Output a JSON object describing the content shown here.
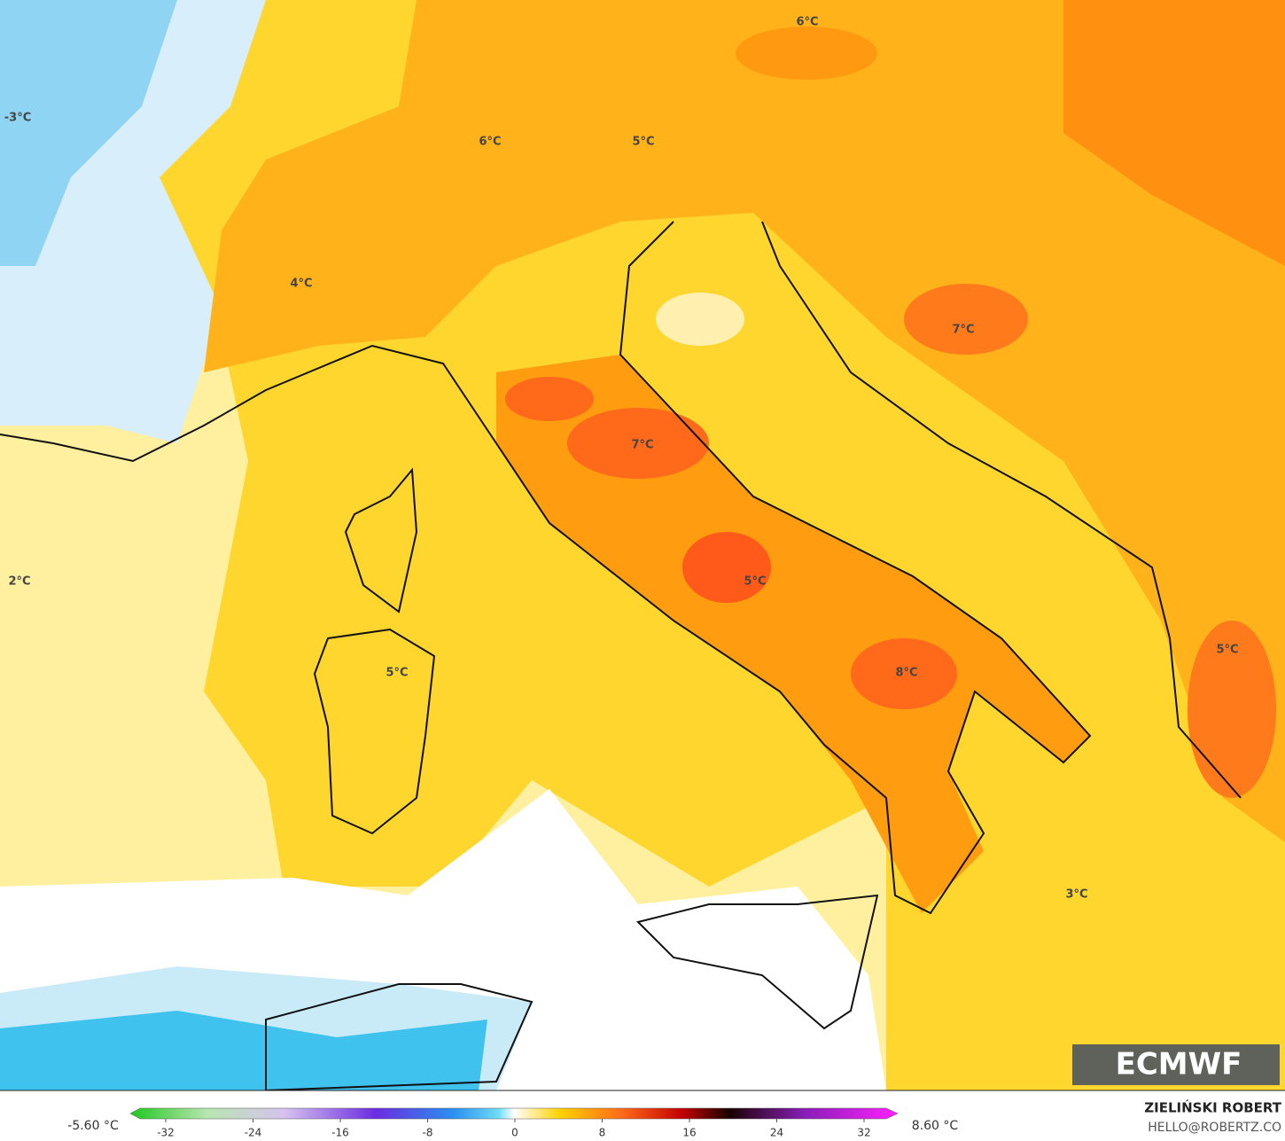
{
  "map": {
    "temperature_labels": [
      "-3°C",
      "6°C",
      "6°C",
      "5°C",
      "4°C",
      "7°C",
      "7°C",
      "2°C",
      "5°C",
      "5°C",
      "8°C",
      "5°C",
      "3°C"
    ],
    "colorbar": {
      "ticks": [
        -32,
        -24,
        -16,
        -8,
        0,
        8,
        16,
        24,
        32
      ],
      "min_label": "-5.60 °C",
      "max_label": "8.60 °C"
    },
    "author": "ZIELIŃSKI ROBERT",
    "email": "HELLO@ROBERTZ.CO",
    "logo": "ECMWF"
  }
}
